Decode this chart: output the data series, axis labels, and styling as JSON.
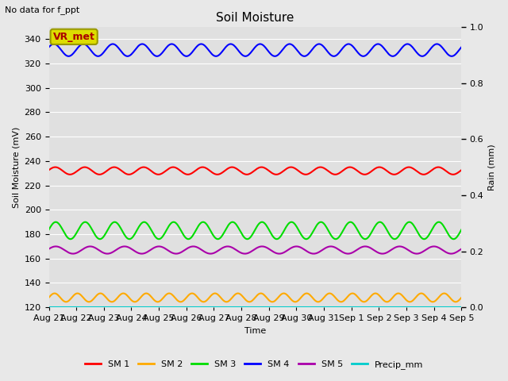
{
  "title": "Soil Moisture",
  "top_left_text": "No data for f_ppt",
  "annotation_text": "VR_met",
  "xlabel": "Time",
  "ylabel_left": "Soil Moisture (mV)",
  "ylabel_right": "Rain (mm)",
  "ylim_left": [
    120,
    350
  ],
  "ylim_right": [
    0.0,
    1.0
  ],
  "yticks_left": [
    120,
    140,
    160,
    180,
    200,
    220,
    240,
    260,
    280,
    300,
    320,
    340
  ],
  "yticks_right": [
    0.0,
    0.2,
    0.4,
    0.6,
    0.8,
    1.0
  ],
  "n_points": 500,
  "series": {
    "SM1": {
      "color": "#ff0000",
      "label": "SM 1",
      "mean": 232,
      "amp": 3,
      "freq": 14.0
    },
    "SM2": {
      "color": "#ffaa00",
      "label": "SM 2",
      "mean": 128,
      "amp": 3.5,
      "freq": 18.0
    },
    "SM3": {
      "color": "#00dd00",
      "label": "SM 3",
      "mean": 183,
      "amp": 7,
      "freq": 14.0
    },
    "SM4": {
      "color": "#0000ff",
      "label": "SM 4",
      "mean": 331,
      "amp": 5,
      "freq": 14.0
    },
    "SM5": {
      "color": "#aa00aa",
      "label": "SM 5",
      "mean": 167,
      "amp": 3,
      "freq": 12.0
    },
    "Precip": {
      "color": "#00cccc",
      "label": "Precip_mm",
      "mean": 120,
      "amp": 0,
      "freq": 0
    }
  },
  "xtick_labels": [
    "Aug 21",
    "Aug 22",
    "Aug 23",
    "Aug 24",
    "Aug 25",
    "Aug 26",
    "Aug 27",
    "Aug 28",
    "Aug 29",
    "Aug 30",
    "Aug 31",
    "Sep 1",
    "Sep 2",
    "Sep 3",
    "Sep 4",
    "Sep 5"
  ],
  "plot_bg_color": "#e0e0e0",
  "fig_bg_color": "#e8e8e8",
  "grid_color": "#ffffff",
  "annotation_bg": "#dddd00",
  "annotation_fc": "#aa0000",
  "annotation_ec": "#999900"
}
